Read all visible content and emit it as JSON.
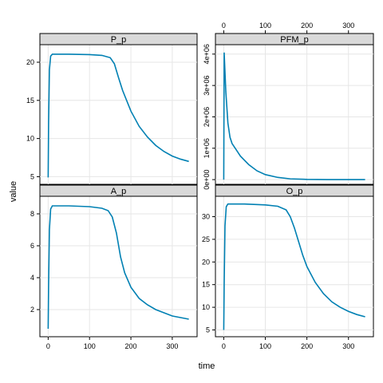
{
  "chart_data": {
    "type": "line",
    "xlabel": "time",
    "ylabel": "value",
    "xlim": [
      -20,
      360
    ],
    "x_ticks": [
      0,
      100,
      200,
      300
    ],
    "line_color": "#0080b3",
    "strip_color": "#d9d9d9",
    "grid": true,
    "panels": [
      {
        "name": "P_p",
        "ylim": [
          4,
          22.3
        ],
        "y_ticks": [
          5,
          10,
          15,
          20
        ],
        "y_tick_labels": [
          "5",
          "10",
          "15",
          "20"
        ],
        "points": [
          [
            0,
            4.9
          ],
          [
            1,
            12
          ],
          [
            3,
            19
          ],
          [
            6,
            20.8
          ],
          [
            10,
            21.05
          ],
          [
            50,
            21.05
          ],
          [
            100,
            21.0
          ],
          [
            130,
            20.9
          ],
          [
            150,
            20.6
          ],
          [
            160,
            19.8
          ],
          [
            170,
            18.0
          ],
          [
            180,
            16.3
          ],
          [
            200,
            13.6
          ],
          [
            220,
            11.6
          ],
          [
            240,
            10.2
          ],
          [
            260,
            9.1
          ],
          [
            280,
            8.3
          ],
          [
            300,
            7.7
          ],
          [
            320,
            7.3
          ],
          [
            340,
            7.0
          ]
        ]
      },
      {
        "name": "PFM_p",
        "ylim": [
          -150000,
          4300000
        ],
        "y_ticks": [
          0,
          1000000,
          2000000,
          3000000,
          4000000
        ],
        "y_tick_labels": [
          "0e+00",
          "1e+06",
          "2e+06",
          "3e+06",
          "4e+06"
        ],
        "points": [
          [
            0,
            0
          ],
          [
            1,
            4050000
          ],
          [
            5,
            2800000
          ],
          [
            10,
            1800000
          ],
          [
            15,
            1350000
          ],
          [
            20,
            1150000
          ],
          [
            30,
            950000
          ],
          [
            40,
            750000
          ],
          [
            60,
            480000
          ],
          [
            80,
            280000
          ],
          [
            100,
            160000
          ],
          [
            130,
            70000
          ],
          [
            160,
            25000
          ],
          [
            200,
            8000
          ],
          [
            250,
            2000
          ],
          [
            300,
            500
          ],
          [
            340,
            0
          ]
        ]
      },
      {
        "name": "A_p",
        "ylim": [
          0.3,
          9.1
        ],
        "y_ticks": [
          2,
          4,
          6,
          8
        ],
        "y_tick_labels": [
          "2",
          "4",
          "6",
          "8"
        ],
        "points": [
          [
            0,
            0.8
          ],
          [
            1,
            3.5
          ],
          [
            3,
            7
          ],
          [
            6,
            8.3
          ],
          [
            10,
            8.5
          ],
          [
            50,
            8.5
          ],
          [
            100,
            8.45
          ],
          [
            130,
            8.35
          ],
          [
            145,
            8.2
          ],
          [
            155,
            7.8
          ],
          [
            165,
            6.8
          ],
          [
            175,
            5.3
          ],
          [
            185,
            4.3
          ],
          [
            200,
            3.4
          ],
          [
            220,
            2.7
          ],
          [
            240,
            2.3
          ],
          [
            260,
            2.0
          ],
          [
            280,
            1.8
          ],
          [
            300,
            1.6
          ],
          [
            320,
            1.5
          ],
          [
            340,
            1.4
          ]
        ]
      },
      {
        "name": "O_p",
        "ylim": [
          3.5,
          34.5
        ],
        "y_ticks": [
          5,
          10,
          15,
          20,
          25,
          30
        ],
        "y_tick_labels": [
          "5",
          "10",
          "15",
          "20",
          "25",
          "30"
        ],
        "points": [
          [
            0,
            5
          ],
          [
            1,
            15
          ],
          [
            3,
            28
          ],
          [
            6,
            32.2
          ],
          [
            10,
            32.8
          ],
          [
            50,
            32.8
          ],
          [
            100,
            32.6
          ],
          [
            130,
            32.3
          ],
          [
            150,
            31.5
          ],
          [
            160,
            30.0
          ],
          [
            170,
            27.5
          ],
          [
            180,
            24.5
          ],
          [
            190,
            21.5
          ],
          [
            200,
            19.0
          ],
          [
            220,
            15.5
          ],
          [
            240,
            13.0
          ],
          [
            260,
            11.2
          ],
          [
            280,
            10.0
          ],
          [
            300,
            9.1
          ],
          [
            320,
            8.4
          ],
          [
            340,
            7.9
          ]
        ]
      }
    ]
  }
}
